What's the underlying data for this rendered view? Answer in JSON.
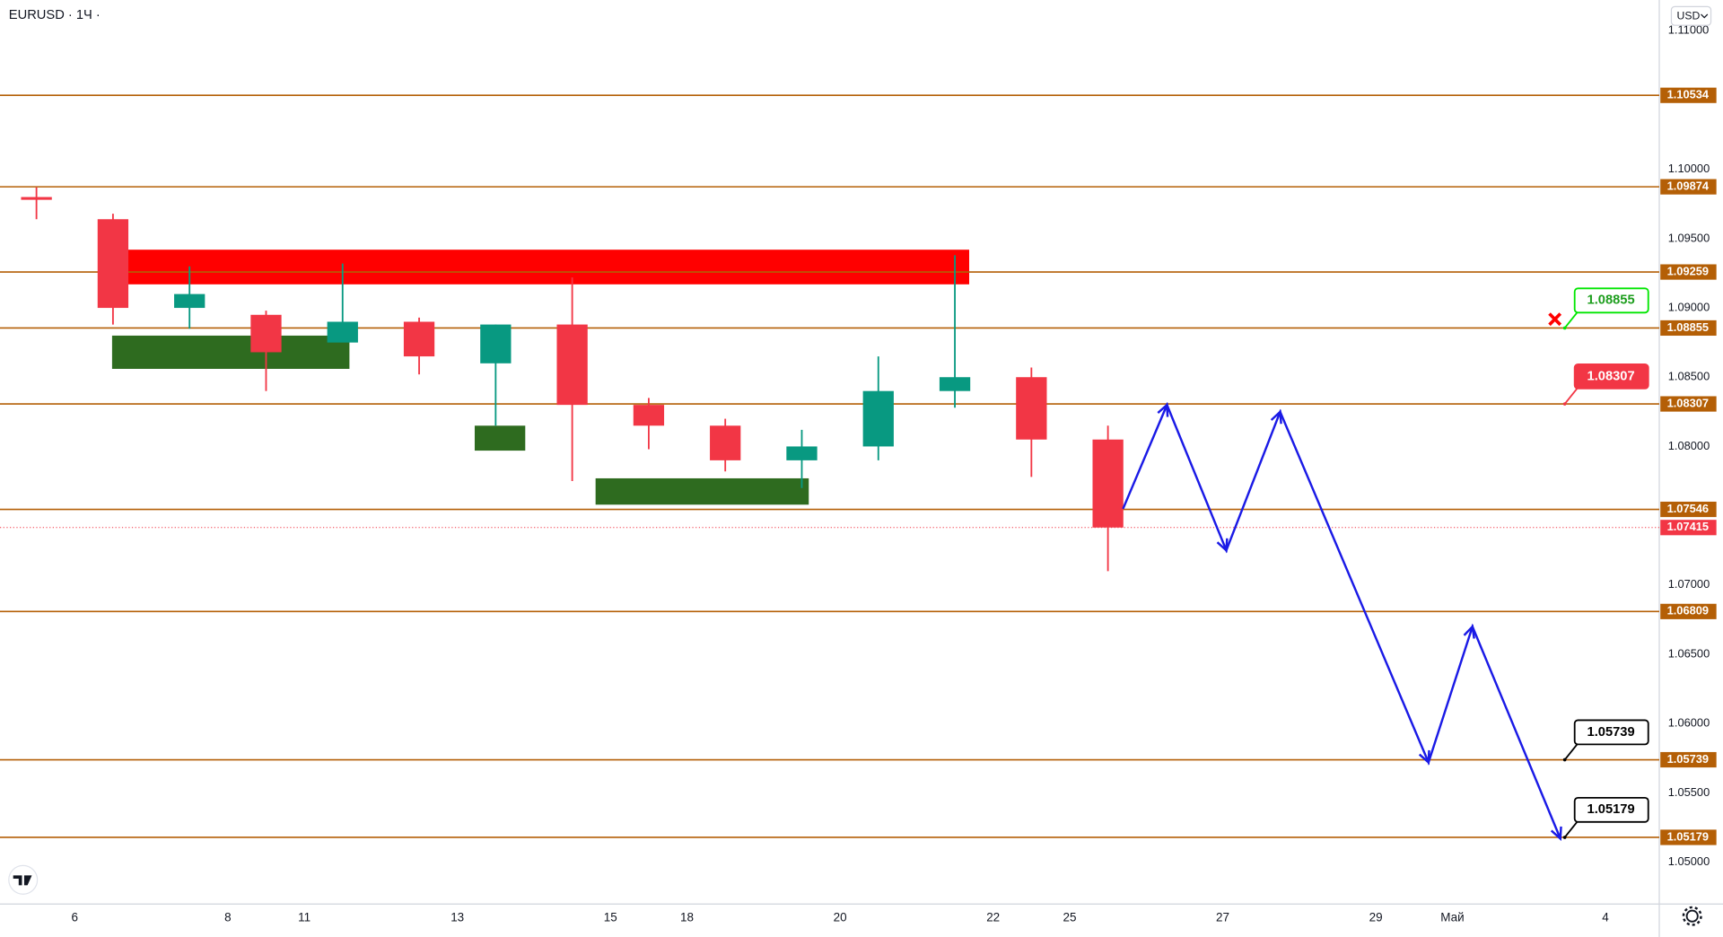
{
  "chart_data": {
    "type": "candlestick",
    "title": "EURUSD · 1Ч ·",
    "currency": "USD",
    "categories": [
      null,
      "6",
      null,
      "8",
      "11",
      null,
      "13",
      null,
      "15",
      "18",
      null,
      "20",
      null,
      "22",
      "25",
      null,
      "27",
      null,
      "29",
      "Май",
      null,
      "4"
    ],
    "open": [
      1.098,
      1.0964,
      1.09,
      1.0895,
      1.0875,
      1.089,
      1.086,
      1.0888,
      1.083,
      1.0815,
      1.079,
      1.08,
      1.084,
      1.085,
      1.0805,
      null,
      null,
      null,
      null,
      null,
      null,
      null
    ],
    "high": [
      1.0987,
      1.0968,
      1.093,
      1.0898,
      1.0932,
      1.0893,
      1.0888,
      1.0922,
      1.0835,
      1.082,
      1.0812,
      1.0865,
      1.0938,
      1.0857,
      1.0815,
      null,
      null,
      null,
      null,
      null,
      null,
      null
    ],
    "low": [
      1.0964,
      1.0888,
      1.0885,
      1.084,
      1.0878,
      1.0852,
      1.0815,
      1.0775,
      1.0798,
      1.0782,
      1.077,
      1.079,
      1.0828,
      1.0778,
      1.071,
      null,
      null,
      null,
      null,
      null,
      null,
      null
    ],
    "close": [
      1.0978,
      1.09,
      1.091,
      1.0868,
      1.089,
      1.0865,
      1.0888,
      1.083,
      1.0815,
      1.079,
      1.08,
      1.084,
      1.085,
      1.0805,
      1.07415,
      null,
      null,
      null,
      null,
      null,
      null,
      null
    ],
    "up_color": "#089981",
    "down_color": "#f23645",
    "ylim": [
      1.04698,
      1.11222
    ],
    "yticks": [
      {
        "value": 1.11,
        "label": "1.11000"
      },
      {
        "value": 1.1,
        "label": "1.10000"
      },
      {
        "value": 1.095,
        "label": "1.09500"
      },
      {
        "value": 1.09,
        "label": "1.09000"
      },
      {
        "value": 1.085,
        "label": "1.08500"
      },
      {
        "value": 1.08,
        "label": "1.08000"
      },
      {
        "value": 1.07,
        "label": "1.07000"
      },
      {
        "value": 1.065,
        "label": "1.06500"
      },
      {
        "value": 1.06,
        "label": "1.06000"
      },
      {
        "value": 1.055,
        "label": "1.05500"
      },
      {
        "value": 1.05,
        "label": "1.05000"
      }
    ],
    "level_color": "#b45f06",
    "levels": [
      {
        "value": 1.10534,
        "label": "1.10534"
      },
      {
        "value": 1.09874,
        "label": "1.09874"
      },
      {
        "value": 1.09259,
        "label": "1.09259"
      },
      {
        "value": 1.08855,
        "label": "1.08855"
      },
      {
        "value": 1.08307,
        "label": "1.08307"
      },
      {
        "value": 1.07546,
        "label": "1.07546"
      },
      {
        "value": 1.06809,
        "label": "1.06809"
      },
      {
        "value": 1.05739,
        "label": "1.05739"
      },
      {
        "value": 1.05179,
        "label": "1.05179"
      }
    ],
    "last_price": {
      "value": 1.07415,
      "label": "1.07415",
      "color": "#f23645"
    },
    "zones": [
      {
        "low": 1.0917,
        "high": 1.0942,
        "color": "#ff0000"
      },
      {
        "low": 1.0856,
        "high": 1.088,
        "color": "#2e6b1f"
      },
      {
        "low": 1.0797,
        "high": 1.0815,
        "color": "#2e6b1f"
      },
      {
        "low": 1.0758,
        "high": 1.0777,
        "color": "#2e6b1f"
      }
    ],
    "forecast": {
      "color": "#1a1ae6",
      "values": [
        1.0755,
        1.083,
        1.0725,
        1.0825,
        1.0572,
        1.067,
        1.0517
      ]
    },
    "callouts": [
      {
        "value": 1.08855,
        "label": "1.08855",
        "color": "#00e600"
      },
      {
        "value": 1.08307,
        "label": "1.08307",
        "color": "#f23645"
      },
      {
        "value": 1.05739,
        "label": "1.05739",
        "color": "#000000"
      },
      {
        "value": 1.05179,
        "label": "1.05179",
        "color": "#000000"
      }
    ]
  }
}
